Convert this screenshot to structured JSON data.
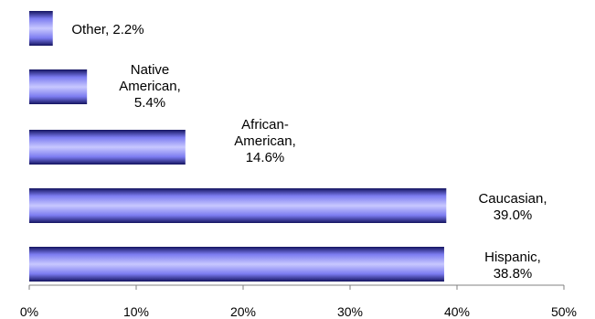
{
  "chart_data": {
    "type": "bar",
    "orientation": "horizontal",
    "title": "",
    "xlabel": "",
    "ylabel": "",
    "categories": [
      "Other",
      "Native American",
      "African-American",
      "Caucasian",
      "Hispanic"
    ],
    "values": [
      2.2,
      5.4,
      14.6,
      39.0,
      38.8
    ],
    "data_labels": [
      [
        "Other, 2.2%"
      ],
      [
        "Native",
        "American,",
        "5.4%"
      ],
      [
        "African-",
        "American,",
        "14.6%"
      ],
      [
        "Caucasian,",
        "39.0%"
      ],
      [
        "Hispanic,",
        "38.8%"
      ]
    ],
    "xlim": [
      0,
      50
    ],
    "x_ticks": [
      "0%",
      "10%",
      "20%",
      "30%",
      "40%",
      "50%"
    ],
    "grid": false,
    "legend": "none",
    "colors": {
      "bar_edge": "#141460",
      "bar_light": "#c8c8ff",
      "bar_mid": "#7c7cf0",
      "axis": "#808080"
    }
  }
}
